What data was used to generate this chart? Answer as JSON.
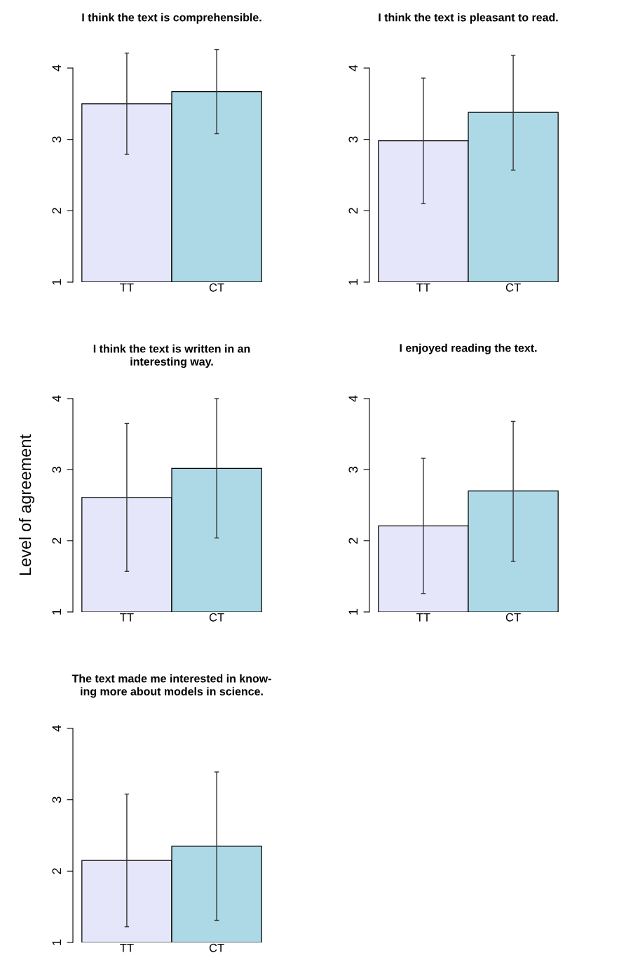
{
  "chart_data": [
    {
      "type": "bar",
      "title": "I think the text is comprehensible.",
      "categories": [
        "TT",
        "CT"
      ],
      "values": [
        3.5,
        3.67
      ],
      "colors": [
        "#e6e6fa",
        "#add8e6"
      ],
      "errors": [
        [
          2.79,
          4.21
        ],
        [
          3.08,
          4.26
        ]
      ],
      "ylim": [
        1,
        4
      ],
      "yticks": [
        1,
        2,
        3,
        4
      ],
      "grid": false,
      "legend": false
    },
    {
      "type": "bar",
      "title": "I think the text is pleasant to read.",
      "categories": [
        "TT",
        "CT"
      ],
      "values": [
        2.98,
        3.38
      ],
      "colors": [
        "#e6e6fa",
        "#add8e6"
      ],
      "errors": [
        [
          2.1,
          3.86
        ],
        [
          2.57,
          4.18
        ]
      ],
      "ylim": [
        1,
        4
      ],
      "yticks": [
        1,
        2,
        3,
        4
      ],
      "grid": false,
      "legend": false
    },
    {
      "type": "bar",
      "title": "I think the text is written in an\ninteresting way.",
      "ylabel": "Level of agreement",
      "categories": [
        "TT",
        "CT"
      ],
      "values": [
        2.61,
        3.02
      ],
      "colors": [
        "#e6e6fa",
        "#add8e6"
      ],
      "errors": [
        [
          1.57,
          3.65
        ],
        [
          2.04,
          4.0
        ]
      ],
      "ylim": [
        1,
        4
      ],
      "yticks": [
        1,
        2,
        3,
        4
      ],
      "grid": false,
      "legend": false
    },
    {
      "type": "bar",
      "title": "I enjoyed reading the text.",
      "categories": [
        "TT",
        "CT"
      ],
      "values": [
        2.21,
        2.7
      ],
      "colors": [
        "#e6e6fa",
        "#add8e6"
      ],
      "errors": [
        [
          1.26,
          3.16
        ],
        [
          1.71,
          3.68
        ]
      ],
      "ylim": [
        1,
        4
      ],
      "yticks": [
        1,
        2,
        3,
        4
      ],
      "grid": false,
      "legend": false
    },
    {
      "type": "bar",
      "title": "The text made me interested in know-\ning more about models in science.",
      "categories": [
        "TT",
        "CT"
      ],
      "values": [
        2.15,
        2.35
      ],
      "colors": [
        "#e6e6fa",
        "#add8e6"
      ],
      "errors": [
        [
          1.22,
          3.08
        ],
        [
          1.31,
          3.39
        ]
      ],
      "ylim": [
        1,
        4
      ],
      "yticks": [
        1,
        2,
        3,
        4
      ],
      "grid": false,
      "legend": false
    }
  ]
}
